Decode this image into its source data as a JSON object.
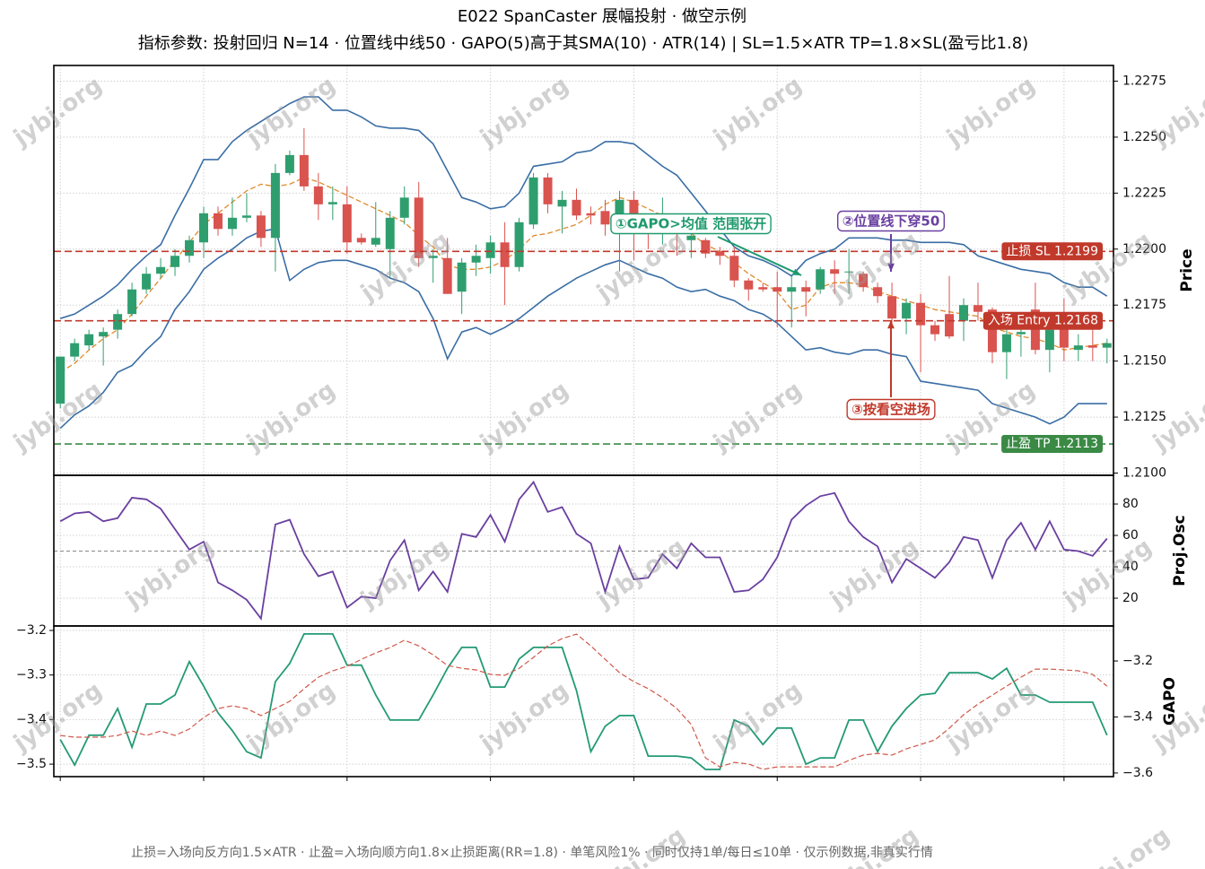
{
  "note": "止损=入场向反方向1.5×ATR · 止盈=入场向顺方向1.8×止损距离(RR=1.8) · 单笔风险1% · 同时仅持1单/每日≤10单 · 仅示例数据,非真实行情",
  "watermark": "jybj.org",
  "chart_data": [
    {
      "type": "candlestick",
      "title": "E022 SpanCaster 展幅投射 · 做空示例",
      "subtitle": "指标参数: 投射回归 N=14 · 位置线中线50 · GAPO(5)高于其SMA(10) · ATR(14)  |  SL=1.5×ATR  TP=1.8×SL(盈亏比1.8)",
      "ylabel": "Price",
      "xlim": [
        -0.45,
        73.45
      ],
      "xticks": [
        0,
        10,
        20,
        30,
        40,
        50,
        60,
        70
      ],
      "ylim": [
        1.2099,
        1.2282
      ],
      "yticks": [
        {
          "value": 1.21,
          "label": "1.2100"
        },
        1.2125,
        {
          "value": 1.215,
          "label": "1.2150"
        },
        1.2175,
        {
          "value": 1.22,
          "label": "1.2200"
        },
        1.2225,
        {
          "value": 1.225,
          "label": "1.2250"
        },
        1.2275
      ],
      "grid": true,
      "up_color": "#2f9e6f",
      "down_color": "#d9534f",
      "open": [
        1.2131,
        1.2152,
        1.2157,
        1.2161,
        1.2164,
        1.2171,
        1.2182,
        1.2189,
        1.2192,
        1.2197,
        1.2203,
        1.2216,
        1.2209,
        1.2214,
        1.2215,
        1.2205,
        1.2234,
        1.2242,
        1.2228,
        1.222,
        1.222,
        1.2205,
        1.2202,
        1.22,
        1.2214,
        1.2223,
        1.2196,
        1.2196,
        1.2181,
        1.2194,
        1.2196,
        1.2203,
        1.2192,
        1.2211,
        1.2232,
        1.2219,
        1.2222,
        1.2216,
        1.2217,
        1.2211,
        1.2222,
        1.221,
        1.221,
        1.2211,
        1.2204,
        1.2204,
        1.2199,
        1.2197,
        1.2186,
        1.2183,
        1.2183,
        1.2181,
        1.2183,
        1.2182,
        1.2191,
        1.219,
        1.2189,
        1.2183,
        1.2179,
        1.2169,
        1.2176,
        1.2166,
        1.2171,
        1.2168,
        1.2175,
        1.2173,
        1.2154,
        1.2162,
        1.2173,
        1.2155,
        1.2169,
        1.2155,
        1.2157,
        1.2156
      ],
      "high": [
        1.2152,
        1.216,
        1.2164,
        1.2165,
        1.2173,
        1.2185,
        1.2192,
        1.2196,
        1.22,
        1.2206,
        1.2219,
        1.2219,
        1.2223,
        1.2225,
        1.2217,
        1.2238,
        1.2244,
        1.2254,
        1.2234,
        1.2228,
        1.2228,
        1.2207,
        1.2221,
        1.2217,
        1.2228,
        1.223,
        1.22,
        1.2205,
        1.2196,
        1.2202,
        1.2206,
        1.2212,
        1.2214,
        1.2234,
        1.2234,
        1.2226,
        1.2227,
        1.2219,
        1.2222,
        1.2226,
        1.2226,
        1.2213,
        1.2223,
        1.2214,
        1.221,
        1.2205,
        1.2201,
        1.2201,
        1.2187,
        1.2185,
        1.219,
        1.2188,
        1.2186,
        1.2192,
        1.2195,
        1.22,
        1.219,
        1.2185,
        1.2185,
        1.2178,
        1.218,
        1.2168,
        1.2188,
        1.2178,
        1.2185,
        1.2174,
        1.2164,
        1.2168,
        1.2185,
        1.2166,
        1.2178,
        1.2162,
        1.2165,
        1.216
      ],
      "low": [
        1.2129,
        1.215,
        1.2155,
        1.2148,
        1.216,
        1.217,
        1.218,
        1.2187,
        1.2188,
        1.2194,
        1.2196,
        1.2206,
        1.2206,
        1.2212,
        1.2201,
        1.219,
        1.2233,
        1.2226,
        1.2213,
        1.2213,
        1.2198,
        1.2202,
        1.2201,
        1.2187,
        1.2211,
        1.2192,
        1.2185,
        1.218,
        1.2171,
        1.2188,
        1.2189,
        1.2175,
        1.219,
        1.2209,
        1.2216,
        1.2207,
        1.2213,
        1.2211,
        1.2206,
        1.219,
        1.2195,
        1.22,
        1.2202,
        1.2197,
        1.2196,
        1.2196,
        1.2193,
        1.2183,
        1.2177,
        1.2181,
        1.2165,
        1.2165,
        1.217,
        1.218,
        1.218,
        1.218,
        1.2181,
        1.2176,
        1.2167,
        1.2162,
        1.2145,
        1.2159,
        1.216,
        1.2159,
        1.2168,
        1.2149,
        1.2142,
        1.2152,
        1.2153,
        1.2145,
        1.215,
        1.215,
        1.215,
        1.2149
      ],
      "close": [
        1.2152,
        1.2158,
        1.2162,
        1.2163,
        1.2171,
        1.2182,
        1.2189,
        1.2192,
        1.2197,
        1.2204,
        1.2216,
        1.2209,
        1.2214,
        1.2215,
        1.2205,
        1.2234,
        1.2242,
        1.2228,
        1.222,
        1.2221,
        1.2203,
        1.2203,
        1.2205,
        1.2214,
        1.2223,
        1.2196,
        1.2197,
        1.218,
        1.2194,
        1.2197,
        1.2203,
        1.2192,
        1.2212,
        1.2232,
        1.222,
        1.2222,
        1.2215,
        1.2215,
        1.2211,
        1.2222,
        1.2212,
        1.2208,
        1.2211,
        1.2207,
        1.2206,
        1.2198,
        1.2197,
        1.2186,
        1.2182,
        1.2182,
        1.2181,
        1.2183,
        1.2181,
        1.2191,
        1.2189,
        1.219,
        1.2183,
        1.2179,
        1.2169,
        1.2176,
        1.2166,
        1.2162,
        1.2161,
        1.2175,
        1.2172,
        1.2154,
        1.2162,
        1.2163,
        1.2155,
        1.2164,
        1.2156,
        1.2157,
        1.2156,
        1.2158
      ],
      "lines": [
        {
          "color": "#3a6ea5",
          "linestyle": "solid",
          "values": [
            1.2169,
            1.2171,
            1.2175,
            1.2179,
            1.2184,
            1.2191,
            1.2197,
            1.2202,
            1.2215,
            1.2227,
            1.224,
            1.224,
            1.2248,
            1.2253,
            1.2257,
            1.2261,
            1.2265,
            1.2268,
            1.2268,
            1.2262,
            1.2262,
            1.2259,
            1.2255,
            1.2254,
            1.2254,
            1.2253,
            1.2247,
            1.2235,
            1.2223,
            1.2221,
            1.2218,
            1.2219,
            1.2225,
            1.2237,
            1.2238,
            1.2239,
            1.2243,
            1.2244,
            1.2248,
            1.2248,
            1.2247,
            1.2242,
            1.2237,
            1.2233,
            1.2225,
            1.2217,
            1.2209,
            1.2201,
            1.2197,
            1.2195,
            1.2192,
            1.2188,
            1.2195,
            1.2198,
            1.22,
            1.2205,
            1.2205,
            1.2205,
            1.2204,
            1.2204,
            1.2203,
            1.2203,
            1.2203,
            1.2202,
            1.2197,
            1.2195,
            1.2193,
            1.2191,
            1.219,
            1.2189,
            1.2185,
            1.2183,
            1.2183,
            1.2179
          ]
        },
        {
          "color": "#3a6ea5",
          "linestyle": "solid",
          "values": [
            1.212,
            1.2126,
            1.213,
            1.2136,
            1.2145,
            1.2148,
            1.2155,
            1.2161,
            1.2173,
            1.2181,
            1.2191,
            1.2196,
            1.22,
            1.2205,
            1.2208,
            1.2209,
            1.2186,
            1.2191,
            1.2194,
            1.2195,
            1.2195,
            1.2193,
            1.2191,
            1.2187,
            1.2185,
            1.2181,
            1.2169,
            1.2151,
            1.2163,
            1.2165,
            1.2162,
            1.2165,
            1.2169,
            1.2174,
            1.2179,
            1.2183,
            1.2187,
            1.219,
            1.2193,
            1.2195,
            1.2192,
            1.2189,
            1.2187,
            1.2183,
            1.2181,
            1.2182,
            1.2179,
            1.2177,
            1.2173,
            1.2171,
            1.2167,
            1.2161,
            1.2155,
            1.2156,
            1.2154,
            1.2153,
            1.2155,
            1.2155,
            1.2153,
            1.2152,
            1.2141,
            1.214,
            1.2139,
            1.2138,
            1.2137,
            1.2131,
            1.2129,
            1.2127,
            1.2125,
            1.2122,
            1.2125,
            1.2131,
            1.2131,
            1.2131
          ]
        },
        {
          "color": "#e08a2c",
          "linestyle": "dashed",
          "values": [
            1.2145,
            1.2149,
            1.2155,
            1.216,
            1.2164,
            1.2171,
            1.2179,
            1.2187,
            1.2195,
            1.2203,
            1.2211,
            1.2216,
            1.2221,
            1.2226,
            1.2229,
            1.2228,
            1.2229,
            1.2232,
            1.223,
            1.2227,
            1.2224,
            1.2221,
            1.2218,
            1.2215,
            1.2212,
            1.2206,
            1.2201,
            1.2193,
            1.2191,
            1.2191,
            1.2192,
            1.2195,
            1.22,
            1.2206,
            1.2207,
            1.2209,
            1.2211,
            1.2215,
            1.222,
            1.2223,
            1.2221,
            1.2218,
            1.2215,
            1.2211,
            1.2207,
            1.2202,
            1.2199,
            1.2194,
            1.2189,
            1.2185,
            1.2181,
            1.2173,
            1.2175,
            1.2183,
            1.2185,
            1.2185,
            1.2184,
            1.2181,
            1.2179,
            1.2177,
            1.2175,
            1.2173,
            1.2172,
            1.2171,
            1.217,
            1.2165,
            1.2163,
            1.2161,
            1.216,
            1.2158,
            1.2155,
            1.2156,
            1.2157,
            1.2158
          ]
        }
      ],
      "levels": [
        {
          "label": "止损 SL 1.2199",
          "value": 1.2199,
          "color": "#c0392b"
        },
        {
          "label": "入场 Entry 1.2168",
          "value": 1.2168,
          "color": "#c0392b"
        },
        {
          "label": "止盈 TP 1.2113",
          "value": 1.2113,
          "color": "#3a8a45"
        }
      ],
      "annotations": [
        {
          "text": "①GAPO>均值 范围张开",
          "color": "#1f9a6e"
        },
        {
          "text": "②位置线下穿50",
          "color": "#6a3fa0"
        },
        {
          "text": "③按看空进场",
          "color": "#c0392b"
        }
      ]
    },
    {
      "type": "line",
      "ylabel": "Proj.Osc",
      "xlim": [
        -0.45,
        73.45
      ],
      "xticks": [
        0,
        10,
        20,
        30,
        40,
        50,
        60,
        70
      ],
      "ylim": [
        2.3,
        98.3
      ],
      "yticks": [
        20,
        40,
        60,
        80
      ],
      "grid": true,
      "ref_line": 50,
      "series": [
        {
          "color": "#6a3fa0",
          "linestyle": "solid",
          "values": [
            69,
            74,
            75,
            69,
            71,
            84,
            83,
            77,
            64,
            51,
            56,
            30,
            25,
            19,
            7,
            67,
            70,
            48,
            34,
            37,
            14,
            21,
            20,
            44,
            57,
            25,
            37,
            24,
            61,
            59,
            73,
            56,
            83,
            94,
            75,
            78,
            61,
            55,
            24,
            53,
            32,
            33,
            48,
            39,
            55,
            46,
            46,
            24,
            25,
            32,
            46,
            70,
            79,
            85,
            87,
            69,
            59,
            53,
            30,
            45,
            39,
            33,
            43,
            59,
            57,
            33,
            57,
            68,
            51,
            69,
            51,
            50,
            47,
            58
          ]
        }
      ]
    },
    {
      "type": "line",
      "ylabel": "GAPO",
      "xlim": [
        -0.45,
        73.45
      ],
      "xticks": [
        0,
        10,
        20,
        30,
        40,
        50,
        60,
        70
      ],
      "ylim": [
        -3.528,
        -3.19
      ],
      "yticks": [
        {
          "value": -3.2,
          "label": "−3.2"
        },
        {
          "value": -3.3,
          "label": "−3.3"
        },
        {
          "value": -3.4,
          "label": "−3.4"
        },
        {
          "value": -3.5,
          "label": "−3.5"
        }
      ],
      "y2lim": [
        -3.613,
        -3.075
      ],
      "y2ticks": [
        {
          "value": -3.2,
          "label": "−3.2"
        },
        {
          "value": -3.4,
          "label": "−3.4"
        },
        {
          "value": -3.6,
          "label": "−3.6"
        }
      ],
      "grid": true,
      "series": [
        {
          "color": "#239a76",
          "linestyle": "solid",
          "axis": "y",
          "values": [
            -3.445,
            -3.502,
            -3.435,
            -3.435,
            -3.375,
            -3.462,
            -3.365,
            -3.365,
            -3.345,
            -3.27,
            -3.325,
            -3.385,
            -3.425,
            -3.472,
            -3.486,
            -3.315,
            -3.274,
            -3.208,
            -3.208,
            -3.208,
            -3.278,
            -3.278,
            -3.345,
            -3.401,
            -3.401,
            -3.401,
            -3.345,
            -3.285,
            -3.238,
            -3.238,
            -3.327,
            -3.327,
            -3.264,
            -3.238,
            -3.238,
            -3.238,
            -3.335,
            -3.472,
            -3.415,
            -3.391,
            -3.391,
            -3.482,
            -3.482,
            -3.482,
            -3.486,
            -3.512,
            -3.512,
            -3.401,
            -3.415,
            -3.456,
            -3.419,
            -3.419,
            -3.5,
            -3.486,
            -3.486,
            -3.401,
            -3.401,
            -3.472,
            -3.415,
            -3.375,
            -3.345,
            -3.341,
            -3.295,
            -3.295,
            -3.295,
            -3.309,
            -3.285,
            -3.345,
            -3.345,
            -3.361,
            -3.361,
            -3.361,
            -3.361,
            -3.435
          ]
        },
        {
          "color": "#d0584a",
          "linestyle": "dashed",
          "axis": "y2",
          "values": [
            -3.466,
            -3.472,
            -3.472,
            -3.472,
            -3.466,
            -3.45,
            -3.466,
            -3.45,
            -3.466,
            -3.443,
            -3.402,
            -3.37,
            -3.36,
            -3.37,
            -3.395,
            -3.37,
            -3.344,
            -3.299,
            -3.258,
            -3.235,
            -3.219,
            -3.194,
            -3.171,
            -3.152,
            -3.126,
            -3.146,
            -3.178,
            -3.216,
            -3.226,
            -3.232,
            -3.248,
            -3.251,
            -3.226,
            -3.187,
            -3.146,
            -3.12,
            -3.104,
            -3.146,
            -3.194,
            -3.242,
            -3.274,
            -3.299,
            -3.331,
            -3.37,
            -3.427,
            -3.546,
            -3.578,
            -3.562,
            -3.568,
            -3.587,
            -3.578,
            -3.578,
            -3.578,
            -3.578,
            -3.578,
            -3.555,
            -3.536,
            -3.53,
            -3.536,
            -3.514,
            -3.498,
            -3.482,
            -3.44,
            -3.392,
            -3.354,
            -3.322,
            -3.29,
            -3.258,
            -3.229,
            -3.229,
            -3.232,
            -3.235,
            -3.248,
            -3.29
          ]
        }
      ]
    }
  ]
}
